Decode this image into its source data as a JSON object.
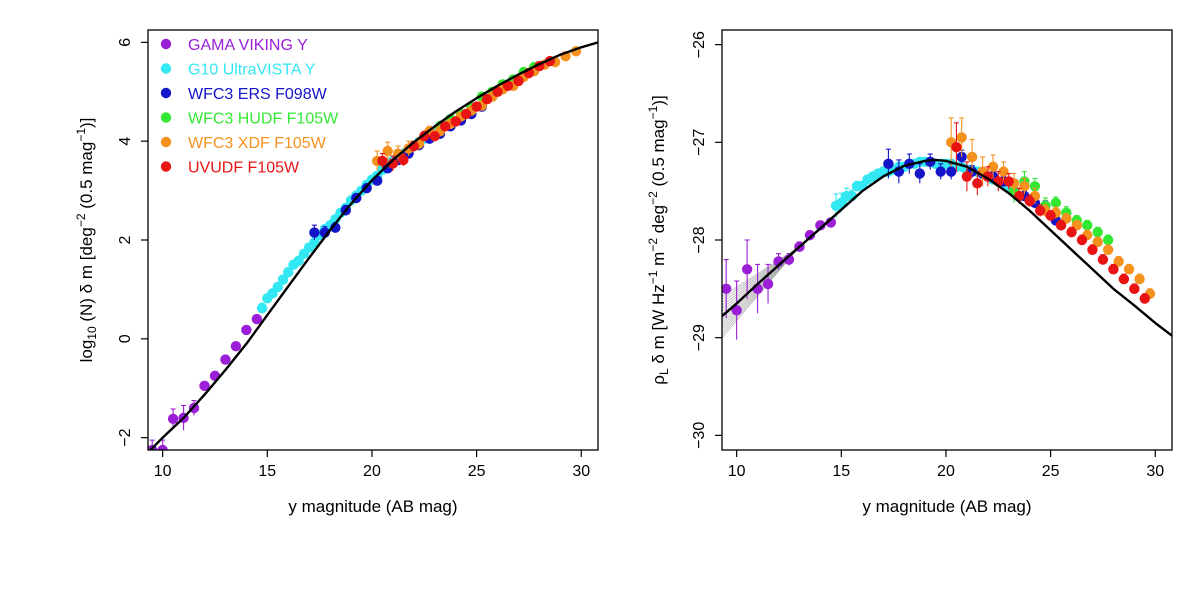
{
  "figure": {
    "background": "#ffffff"
  },
  "chart_data": [
    {
      "type": "scatter",
      "panel": "left",
      "title": "",
      "xlabel": "y magnitude (AB mag)",
      "ylabel_parts": {
        "pre": "log",
        "sub": "10",
        "mid": " (N) δ m [deg",
        "sup1": "−2",
        "mid2": " (0.5 mag",
        "sup2": "−1",
        "post": ")]"
      },
      "xlim": [
        9.3,
        30.8
      ],
      "ylim": [
        -2.25,
        6.25
      ],
      "xticks": [
        {
          "v": 10,
          "label": "10"
        },
        {
          "v": 15,
          "label": "15"
        },
        {
          "v": 20,
          "label": "20"
        },
        {
          "v": 25,
          "label": "25"
        },
        {
          "v": 30,
          "label": "30"
        }
      ],
      "yticks": [
        {
          "v": -2,
          "label": "−2"
        },
        {
          "v": 0,
          "label": "0"
        },
        {
          "v": 2,
          "label": "2"
        },
        {
          "v": 4,
          "label": "4"
        },
        {
          "v": 6,
          "label": "6"
        }
      ],
      "legend_position": "top-left",
      "legend": [
        {
          "label": "GAMA VIKING Y",
          "color": "#9a1fd6"
        },
        {
          "label": "G10 UltraVISTA Y",
          "color": "#33e8f2"
        },
        {
          "label": "WFC3 ERS F098W",
          "color": "#1414c8"
        },
        {
          "label": "WFC3 HUDF F105W",
          "color": "#33e833"
        },
        {
          "label": "WFC3 XDF F105W",
          "color": "#f5921e"
        },
        {
          "label": "UVUDF F105W",
          "color": "#e81414"
        }
      ],
      "fit_curve": {
        "color": "#000000",
        "x": [
          9.3,
          10,
          11,
          12,
          13,
          14,
          15,
          16,
          17,
          18,
          19,
          20,
          21,
          22,
          23,
          24,
          25,
          26,
          27,
          28,
          29,
          30,
          30.8
        ],
        "y": [
          -2.3,
          -2.0,
          -1.6,
          -1.13,
          -0.63,
          -0.1,
          0.48,
          1.06,
          1.64,
          2.2,
          2.73,
          3.21,
          3.62,
          3.98,
          4.3,
          4.6,
          4.87,
          5.12,
          5.35,
          5.56,
          5.75,
          5.9,
          6.0
        ]
      },
      "series": [
        {
          "name": "GAMA VIKING Y",
          "color": "#9a1fd6",
          "x": [
            9.5,
            10.0,
            10.5,
            11.0,
            11.5,
            12.0,
            12.5,
            13.0,
            13.5,
            14.0,
            14.5
          ],
          "y": [
            -2.25,
            -2.25,
            -1.62,
            -1.6,
            -1.4,
            -0.95,
            -0.75,
            -0.42,
            -0.15,
            0.18,
            0.4
          ],
          "err": [
            0.2,
            0.2,
            0.2,
            0.25,
            0.15,
            0.06,
            0.05,
            0.05,
            0.04,
            0.04,
            0.04
          ]
        },
        {
          "name": "G10 UltraVISTA Y",
          "color": "#33e8f2",
          "x": [
            14.75,
            15.0,
            15.25,
            15.5,
            15.75,
            16.0,
            16.25,
            16.5,
            16.75,
            17.0,
            17.25,
            17.5,
            17.75,
            18.0,
            18.25,
            18.5,
            18.75,
            19.0,
            19.25,
            19.5,
            19.75,
            20.0,
            20.25,
            20.5,
            20.75,
            21.0,
            21.25,
            21.5,
            21.75,
            22.0,
            22.25,
            22.5,
            22.75,
            23.0,
            23.25
          ],
          "y": [
            0.62,
            0.82,
            0.92,
            1.05,
            1.2,
            1.35,
            1.5,
            1.58,
            1.72,
            1.85,
            1.95,
            2.1,
            2.22,
            2.3,
            2.42,
            2.55,
            2.65,
            2.8,
            2.9,
            3.0,
            3.12,
            3.22,
            3.3,
            3.42,
            3.5,
            3.6,
            3.68,
            3.75,
            3.82,
            3.9,
            3.98,
            4.05,
            4.12,
            4.18,
            4.25
          ],
          "err": [
            0.1,
            0.08,
            0.06,
            0.05,
            0.04,
            0.04,
            0.04,
            0.03,
            0.03,
            0.03,
            0.03,
            0.03,
            0.03,
            0.03,
            0.03,
            0.03,
            0.03,
            0.03,
            0.03,
            0.03,
            0.03,
            0.03,
            0.03,
            0.03,
            0.03,
            0.03,
            0.03,
            0.03,
            0.03,
            0.03,
            0.03,
            0.03,
            0.03,
            0.03,
            0.03
          ]
        },
        {
          "name": "WFC3 ERS F098W",
          "color": "#1414c8",
          "x": [
            17.25,
            17.75,
            18.25,
            18.75,
            19.25,
            19.75,
            20.25,
            20.75,
            21.25,
            21.75,
            22.25,
            22.75,
            23.25,
            23.75,
            24.25,
            24.75,
            25.25
          ],
          "y": [
            2.15,
            2.15,
            2.25,
            2.6,
            2.85,
            3.05,
            3.2,
            3.45,
            3.62,
            3.75,
            3.92,
            4.05,
            4.15,
            4.3,
            4.42,
            4.55,
            4.7
          ],
          "err": [
            0.15,
            0.12,
            0.1,
            0.1,
            0.08,
            0.08,
            0.08,
            0.07,
            0.06,
            0.06,
            0.05,
            0.05,
            0.05,
            0.05,
            0.05,
            0.05,
            0.05
          ]
        },
        {
          "name": "WFC3 HUDF F105W",
          "color": "#33e833",
          "x": [
            23.25,
            23.75,
            24.25,
            24.75,
            25.25,
            25.75,
            26.25,
            26.75,
            27.25,
            27.75
          ],
          "y": [
            4.3,
            4.45,
            4.55,
            4.68,
            4.9,
            5.0,
            5.15,
            5.25,
            5.4,
            5.5
          ],
          "err": [
            0.1,
            0.08,
            0.08,
            0.06,
            0.06,
            0.05,
            0.05,
            0.05,
            0.05,
            0.05
          ]
        },
        {
          "name": "WFC3 XDF F105W",
          "color": "#f5921e",
          "x": [
            20.25,
            20.75,
            21.25,
            21.75,
            22.25,
            22.75,
            23.25,
            23.75,
            24.25,
            24.75,
            25.25,
            25.75,
            26.25,
            26.75,
            27.25,
            27.75,
            28.25,
            28.75,
            29.25,
            29.75
          ],
          "y": [
            3.6,
            3.8,
            3.75,
            3.85,
            3.95,
            4.2,
            4.2,
            4.35,
            4.5,
            4.62,
            4.72,
            4.9,
            5.05,
            5.12,
            5.3,
            5.42,
            5.55,
            5.6,
            5.72,
            5.82
          ],
          "err": [
            0.2,
            0.18,
            0.15,
            0.15,
            0.12,
            0.1,
            0.1,
            0.08,
            0.08,
            0.06,
            0.06,
            0.05,
            0.05,
            0.05,
            0.05,
            0.05,
            0.05,
            0.05,
            0.05,
            0.05
          ]
        },
        {
          "name": "UVUDF F105W",
          "color": "#e81414",
          "x": [
            20.5,
            21.0,
            21.5,
            22.0,
            22.5,
            23.0,
            23.5,
            24.0,
            24.5,
            25.0,
            25.5,
            26.0,
            26.5,
            27.0,
            27.5,
            28.0,
            28.5
          ],
          "y": [
            3.6,
            3.55,
            3.62,
            3.9,
            4.1,
            4.1,
            4.3,
            4.4,
            4.55,
            4.7,
            4.85,
            5.0,
            5.12,
            5.22,
            5.38,
            5.52,
            5.62
          ],
          "err": [
            0.15,
            0.15,
            0.12,
            0.1,
            0.1,
            0.08,
            0.08,
            0.06,
            0.06,
            0.05,
            0.05,
            0.05,
            0.05,
            0.05,
            0.05,
            0.05,
            0.05
          ]
        }
      ]
    },
    {
      "type": "scatter",
      "panel": "right",
      "title": "",
      "xlabel": "y magnitude (AB mag)",
      "ylabel_parts": {
        "rho": "ρ",
        "sub": "L",
        "mid": " δ m [W Hz",
        "sup1": "−1",
        "mid2": " m",
        "sup2": "−2",
        "mid3": " deg",
        "sup3": "−2",
        "mid4": " (0.5 mag",
        "sup4": "−1",
        "post": ")]"
      },
      "xlim": [
        9.3,
        30.8
      ],
      "ylim": [
        -30.15,
        -25.85
      ],
      "xticks": [
        {
          "v": 10,
          "label": "10"
        },
        {
          "v": 15,
          "label": "15"
        },
        {
          "v": 20,
          "label": "20"
        },
        {
          "v": 25,
          "label": "25"
        },
        {
          "v": 30,
          "label": "30"
        }
      ],
      "yticks": [
        {
          "v": -30,
          "label": "−30"
        },
        {
          "v": -29,
          "label": "−29"
        },
        {
          "v": -28,
          "label": "−28"
        },
        {
          "v": -27,
          "label": "−27"
        },
        {
          "v": -26,
          "label": "−26"
        }
      ],
      "fit_curve": {
        "color": "#000000",
        "x": [
          9.3,
          10,
          11,
          12,
          13,
          14,
          15,
          16,
          17,
          18,
          19,
          19.5,
          20,
          21,
          22,
          23,
          24,
          25,
          26,
          27,
          28,
          29,
          30,
          30.8
        ],
        "y": [
          -28.78,
          -28.65,
          -28.45,
          -28.26,
          -28.07,
          -27.88,
          -27.69,
          -27.5,
          -27.35,
          -27.24,
          -27.19,
          -27.18,
          -27.19,
          -27.25,
          -27.37,
          -27.52,
          -27.7,
          -27.9,
          -28.1,
          -28.3,
          -28.5,
          -28.67,
          -28.85,
          -28.98
        ]
      },
      "uncertainty_band": {
        "color": "#888888",
        "x_end": 13.0,
        "y_lo_start": -29.0,
        "y_hi_start": -28.58
      },
      "series": [
        {
          "name": "GAMA VIKING Y",
          "color": "#9a1fd6",
          "x": [
            9.5,
            10.0,
            10.5,
            11.0,
            11.5,
            12.0,
            12.5,
            13.0,
            13.5,
            14.0,
            14.5
          ],
          "y": [
            -28.5,
            -28.72,
            -28.3,
            -28.5,
            -28.45,
            -28.22,
            -28.2,
            -28.07,
            -27.95,
            -27.85,
            -27.82
          ],
          "err": [
            0.3,
            0.3,
            0.3,
            0.25,
            0.2,
            0.08,
            0.06,
            0.05,
            0.04,
            0.04,
            0.04
          ]
        },
        {
          "name": "G10 UltraVISTA Y",
          "color": "#33e8f2",
          "x": [
            14.75,
            15.0,
            15.25,
            15.5,
            15.75,
            16.0,
            16.25,
            16.5,
            16.75,
            17.0,
            17.25,
            17.5,
            17.75,
            18.0,
            18.25,
            18.5,
            18.75,
            19.0,
            19.25,
            19.5,
            19.75,
            20.0,
            20.25,
            20.5,
            20.75,
            21.0,
            21.25,
            21.5,
            21.75,
            22.0,
            22.25,
            22.5,
            22.75,
            23.0,
            23.25
          ],
          "y": [
            -27.65,
            -27.62,
            -27.55,
            -27.55,
            -27.45,
            -27.45,
            -27.38,
            -27.35,
            -27.32,
            -27.3,
            -27.3,
            -27.28,
            -27.25,
            -27.25,
            -27.22,
            -27.22,
            -27.2,
            -27.2,
            -27.2,
            -27.22,
            -27.22,
            -27.22,
            -27.22,
            -27.25,
            -27.25,
            -27.28,
            -27.28,
            -27.3,
            -27.32,
            -27.35,
            -27.38,
            -27.4,
            -27.42,
            -27.45,
            -27.5
          ],
          "err": [
            0.12,
            0.1,
            0.08,
            0.06,
            0.05,
            0.05,
            0.04,
            0.04,
            0.04,
            0.03,
            0.03,
            0.03,
            0.03,
            0.03,
            0.03,
            0.03,
            0.03,
            0.03,
            0.03,
            0.03,
            0.03,
            0.03,
            0.03,
            0.03,
            0.03,
            0.03,
            0.03,
            0.03,
            0.03,
            0.03,
            0.03,
            0.03,
            0.03,
            0.03,
            0.03
          ]
        },
        {
          "name": "WFC3 ERS F098W",
          "color": "#1414c8",
          "x": [
            17.25,
            17.75,
            18.25,
            18.75,
            19.25,
            19.75,
            20.25,
            20.75,
            21.25,
            21.75,
            22.25,
            22.75,
            23.25,
            23.75,
            24.25,
            24.75,
            25.25
          ],
          "y": [
            -27.22,
            -27.3,
            -27.22,
            -27.32,
            -27.2,
            -27.3,
            -27.3,
            -27.15,
            -27.3,
            -27.32,
            -27.35,
            -27.4,
            -27.5,
            -27.55,
            -27.62,
            -27.65,
            -27.8
          ],
          "err": [
            0.15,
            0.12,
            0.1,
            0.1,
            0.08,
            0.08,
            0.08,
            0.07,
            0.06,
            0.06,
            0.05,
            0.05,
            0.05,
            0.05,
            0.05,
            0.05,
            0.05
          ]
        },
        {
          "name": "WFC3 HUDF F105W",
          "color": "#33e833",
          "x": [
            23.25,
            23.75,
            24.25,
            24.75,
            25.25,
            25.75,
            26.25,
            26.75,
            27.25,
            27.75
          ],
          "y": [
            -27.5,
            -27.4,
            -27.45,
            -27.65,
            -27.62,
            -27.72,
            -27.8,
            -27.85,
            -27.92,
            -28.0
          ],
          "err": [
            0.12,
            0.1,
            0.08,
            0.08,
            0.06,
            0.06,
            0.05,
            0.05,
            0.05,
            0.05
          ]
        },
        {
          "name": "WFC3 XDF F105W",
          "color": "#f5921e",
          "x": [
            20.25,
            20.75,
            21.25,
            21.75,
            22.25,
            22.75,
            23.25,
            23.75,
            24.25,
            24.75,
            25.25,
            25.75,
            26.25,
            26.75,
            27.25,
            27.75,
            28.25,
            28.75,
            29.25,
            29.75
          ],
          "y": [
            -27.0,
            -26.95,
            -27.15,
            -27.3,
            -27.25,
            -27.3,
            -27.42,
            -27.45,
            -27.55,
            -27.7,
            -27.72,
            -27.78,
            -27.85,
            -27.95,
            -28.02,
            -28.1,
            -28.22,
            -28.3,
            -28.4,
            -28.55
          ],
          "err": [
            0.25,
            0.2,
            0.18,
            0.15,
            0.12,
            0.1,
            0.1,
            0.08,
            0.08,
            0.06,
            0.06,
            0.05,
            0.05,
            0.05,
            0.05,
            0.05,
            0.05,
            0.05,
            0.05,
            0.05
          ]
        },
        {
          "name": "UVUDF F105W",
          "color": "#e81414",
          "x": [
            20.5,
            21.0,
            21.5,
            22.0,
            22.5,
            23.0,
            23.5,
            24.0,
            24.5,
            25.0,
            25.5,
            26.0,
            26.5,
            27.0,
            27.5,
            28.0,
            28.5,
            29.0,
            29.5
          ],
          "y": [
            -27.05,
            -27.35,
            -27.42,
            -27.35,
            -27.4,
            -27.4,
            -27.55,
            -27.6,
            -27.7,
            -27.75,
            -27.85,
            -27.92,
            -28.0,
            -28.1,
            -28.2,
            -28.3,
            -28.4,
            -28.5,
            -28.6
          ],
          "err": [
            0.25,
            0.15,
            0.12,
            0.1,
            0.1,
            0.08,
            0.08,
            0.06,
            0.06,
            0.05,
            0.05,
            0.05,
            0.05,
            0.05,
            0.05,
            0.05,
            0.05,
            0.05,
            0.05
          ]
        }
      ]
    }
  ]
}
